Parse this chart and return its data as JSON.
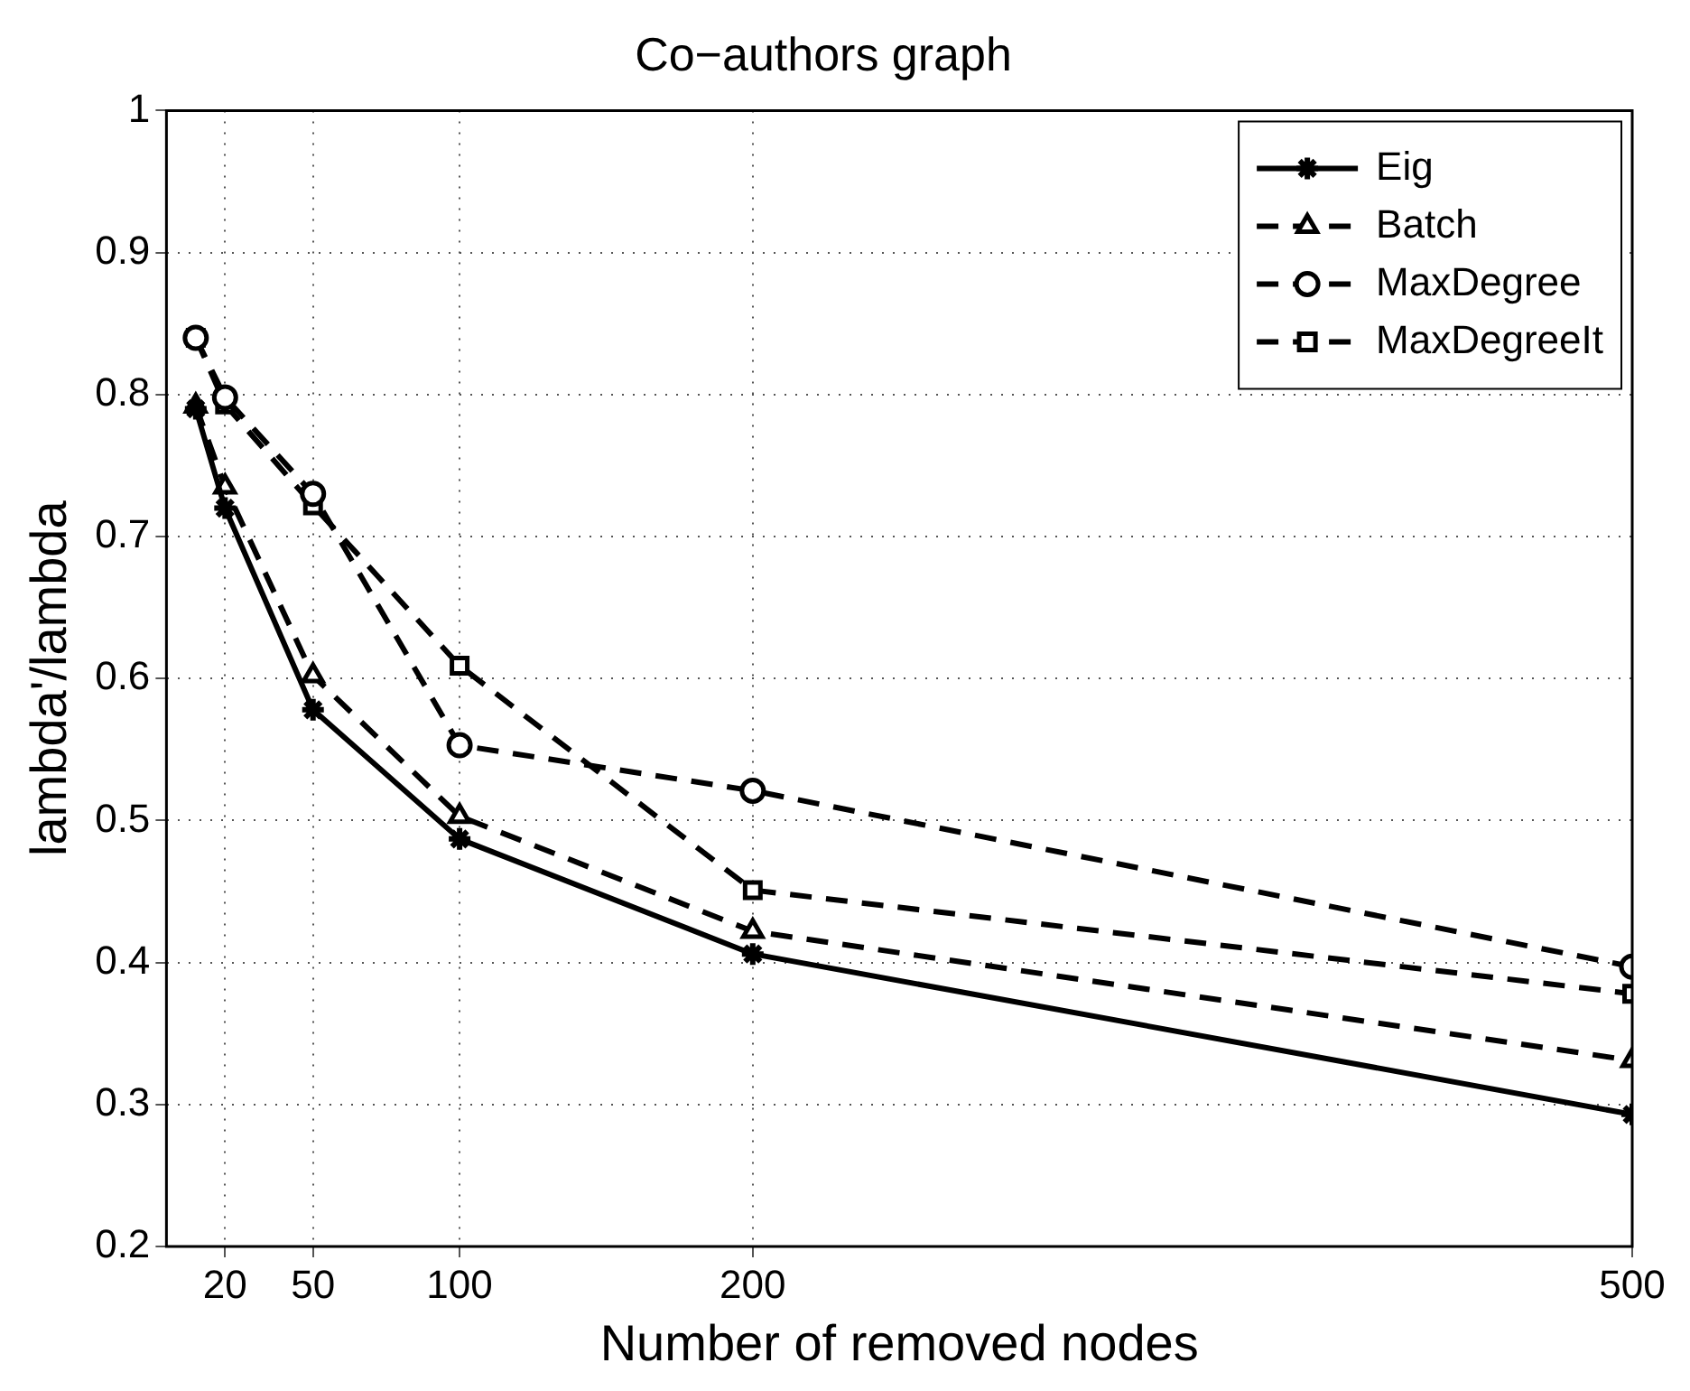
{
  "chart_data": {
    "type": "line",
    "title": "Co−authors graph",
    "xlabel": "Number of removed nodes",
    "ylabel": "lambda'/lambda",
    "xlim": [
      0,
      500
    ],
    "xticks": [
      20,
      50,
      100,
      200,
      500
    ],
    "ylim": [
      0.2,
      1
    ],
    "yticks": [
      0.2,
      0.3,
      0.4,
      0.5,
      0.6,
      0.7,
      0.8,
      0.9,
      1
    ],
    "grid": true,
    "legend": "top right",
    "x": [
      10,
      20,
      50,
      100,
      200,
      500
    ],
    "series": [
      {
        "name": "Eig",
        "color": "#000000",
        "marker": "cross",
        "line_style": "solid",
        "values": [
          0.79,
          0.72,
          0.578,
          0.487,
          0.406,
          0.293
        ]
      },
      {
        "name": "Batch",
        "color": "#000000",
        "marker": "triangle",
        "line_style": "dashed",
        "values": [
          0.792,
          0.735,
          0.602,
          0.503,
          0.422,
          0.331
        ]
      },
      {
        "name": "MaxDegree",
        "color": "#000000",
        "marker": "circle",
        "line_style": "dashed",
        "values": [
          0.84,
          0.798,
          0.73,
          0.553,
          0.521,
          0.397
        ]
      },
      {
        "name": "MaxDegreeIt",
        "color": "#000000",
        "marker": "square",
        "line_style": "dashed",
        "values": [
          0.84,
          0.793,
          0.722,
          0.609,
          0.451,
          0.378
        ]
      }
    ]
  }
}
